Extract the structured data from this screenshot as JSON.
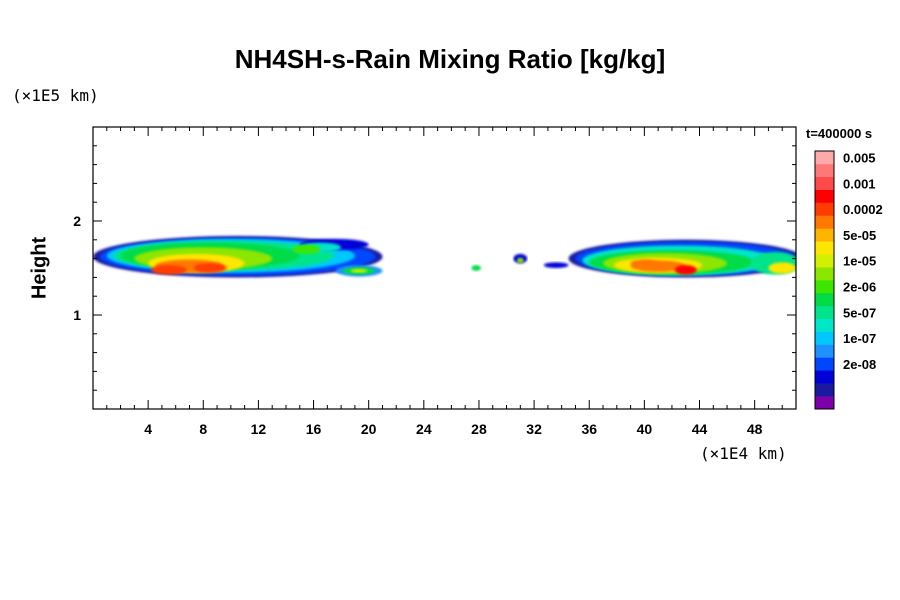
{
  "chart_data": {
    "type": "heatmap",
    "title": "NH4SH-s-Rain Mixing Ratio [kg/kg]",
    "ylabel": "Height",
    "y_exponent_label": "(×1E5 km)",
    "x_exponent_label": "(×1E4 km)",
    "time_label": "t=400000 s",
    "xlim": [
      0,
      51
    ],
    "ylim": [
      0,
      3
    ],
    "x_ticks": [
      "4",
      "8",
      "12",
      "16",
      "20",
      "24",
      "28",
      "32",
      "36",
      "40",
      "44",
      "48"
    ],
    "y_ticks": [
      "1",
      "2"
    ],
    "colorbar": {
      "labels": [
        "0.005",
        "0.001",
        "0.0002",
        "5e-05",
        "1e-05",
        "2e-06",
        "5e-07",
        "1e-07",
        "2e-08"
      ],
      "colors": [
        "#7e00a8",
        "#1a1aa0",
        "#0000d8",
        "#0046ff",
        "#1e90ff",
        "#00c8ff",
        "#00e6c8",
        "#00e48c",
        "#00dc46",
        "#3ce600",
        "#8ce600",
        "#d2f000",
        "#ffe600",
        "#ffb400",
        "#ff7800",
        "#ff3c00",
        "#ff0000",
        "#ff4a4a",
        "#ff7878",
        "#ffaaaa"
      ]
    },
    "regions": [
      {
        "name": "west cluster",
        "x_range": [
          0,
          21
        ],
        "y_range": [
          1.3,
          2.0
        ],
        "max_level": "0.0002"
      },
      {
        "name": "small patch",
        "x_range": [
          16.5,
          21.5
        ],
        "y_range": [
          1.45,
          1.55
        ],
        "max_level": "1e-05"
      },
      {
        "name": "isolated cells",
        "x_range": [
          27,
          35
        ],
        "y_range": [
          1.45,
          1.65
        ],
        "max_level": "5e-05"
      },
      {
        "name": "east cluster",
        "x_range": [
          34,
          51
        ],
        "y_range": [
          1.3,
          1.9
        ],
        "max_level": "0.001"
      }
    ]
  }
}
